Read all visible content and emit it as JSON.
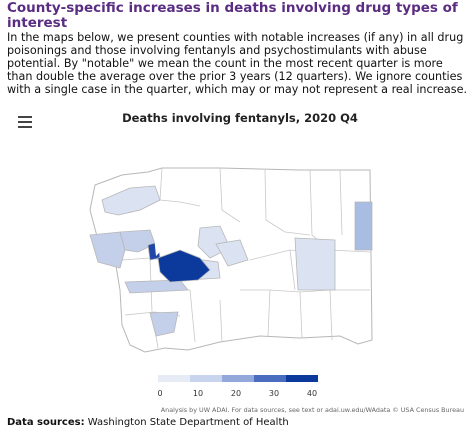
{
  "header": {
    "title": "County-specific increases in deaths involving drug types of interest",
    "description": "In the maps below, we present counties with notable increases (if any) in all drug poisonings and those involving fentanyls and psychostimulants with abuse potential. By \"notable\" we mean the count in the most recent quarter is more than double the average over the prior 3 years (12 quarters). We ignore counties with a single case in the quarter, which may or may not represent a real increase."
  },
  "map": {
    "title": "Deaths involving fentanyls, 2020 Q4",
    "menu_icon": "hamburger-menu-icon",
    "colors": {
      "c0": "#ffffff",
      "c1": "#dbe3f2",
      "c2": "#c4d0ea",
      "c3": "#a9bde2",
      "c4": "#2046a8",
      "c5": "#0c3a9c",
      "border": "#b7b7b7",
      "water": "#ffffff"
    },
    "highlighted_regions": [
      {
        "area": "northern peninsula",
        "level": "c1"
      },
      {
        "area": "western coast",
        "level": "c2"
      },
      {
        "area": "southwest",
        "level": "c3"
      },
      {
        "area": "far west central",
        "level": "c2"
      },
      {
        "area": "central corridor",
        "level": "c1"
      },
      {
        "area": "mid-central",
        "level": "c1"
      },
      {
        "area": "south-central strip",
        "level": "c2"
      },
      {
        "area": "central eastern",
        "level": "c1"
      },
      {
        "area": "eastern border",
        "level": "c3"
      },
      {
        "area": "south-central tip",
        "level": "c2"
      },
      {
        "area": "puget sound core",
        "level": "c4"
      },
      {
        "area": "pierce county",
        "level": "c5"
      }
    ],
    "legend": {
      "ticks": [
        "0",
        "10",
        "20",
        "30",
        "40"
      ],
      "colors": [
        "#e6ebf6",
        "#c9d5ee",
        "#93a9dc",
        "#4a6dc0",
        "#0c3a9c"
      ]
    },
    "attribution": "Analysis by UW ADAI. For data sources, see text or adai.uw.edu/WAdata © USA Census Bureau"
  },
  "footer": {
    "sources_label": "Data sources:",
    "sources_value": "Washington State Department of Health"
  }
}
